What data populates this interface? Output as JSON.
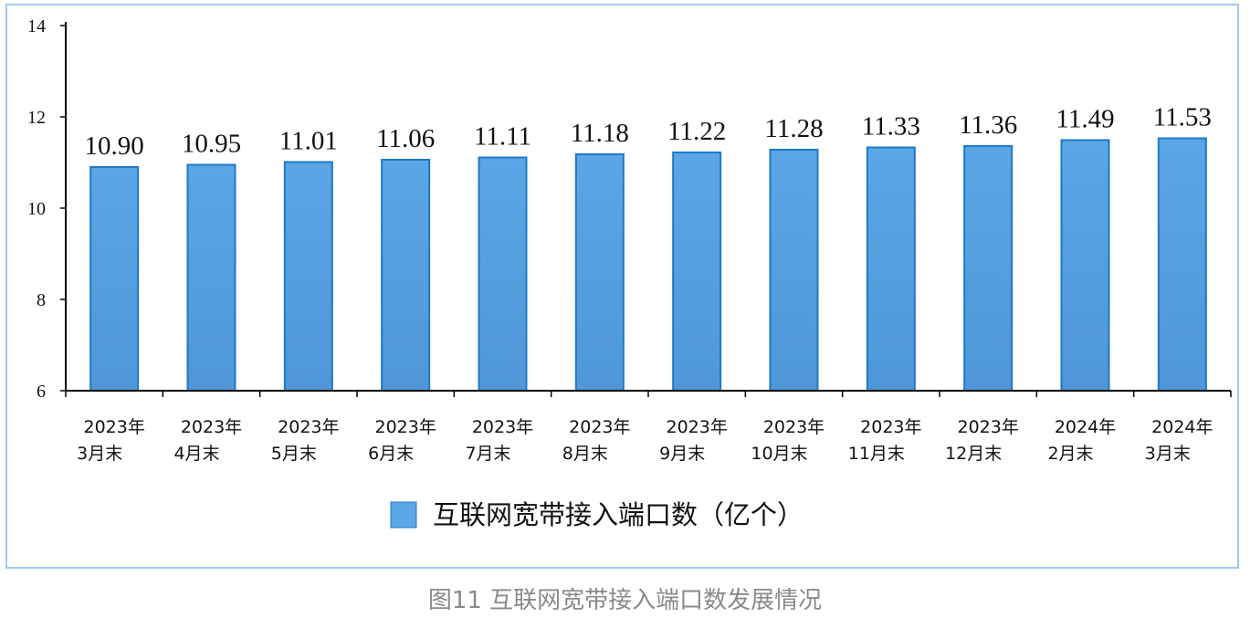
{
  "chart_data": {
    "type": "bar",
    "categories": [
      [
        "2023年",
        "3月末"
      ],
      [
        "2023年",
        "4月末"
      ],
      [
        "2023年",
        "5月末"
      ],
      [
        "2023年",
        "6月末"
      ],
      [
        "2023年",
        "7月末"
      ],
      [
        "2023年",
        "8月末"
      ],
      [
        "2023年",
        "9月末"
      ],
      [
        "2023年",
        "10月末"
      ],
      [
        "2023年",
        "11月末"
      ],
      [
        "2023年",
        "12月末"
      ],
      [
        "2024年",
        "2月末"
      ],
      [
        "2024年",
        "3月末"
      ]
    ],
    "series": [
      {
        "name": "互联网宽带接入端口数（亿个）",
        "values": [
          10.9,
          10.95,
          11.01,
          11.06,
          11.11,
          11.18,
          11.22,
          11.28,
          11.33,
          11.36,
          11.49,
          11.53
        ],
        "value_labels": [
          "10.90",
          "10.95",
          "11.01",
          "11.06",
          "11.11",
          "11.18",
          "11.22",
          "11.28",
          "11.33",
          "11.36",
          "11.49",
          "11.53"
        ]
      }
    ],
    "ylim": [
      6,
      14
    ],
    "yticks": [
      6,
      8,
      10,
      12,
      14
    ],
    "bar_color": "#5ba6e6",
    "bar_edge_color": "#1f79c4",
    "legend_position": "bottom-center",
    "grid": false
  },
  "caption": "图11 互联网宽带接入端口数发展情况"
}
